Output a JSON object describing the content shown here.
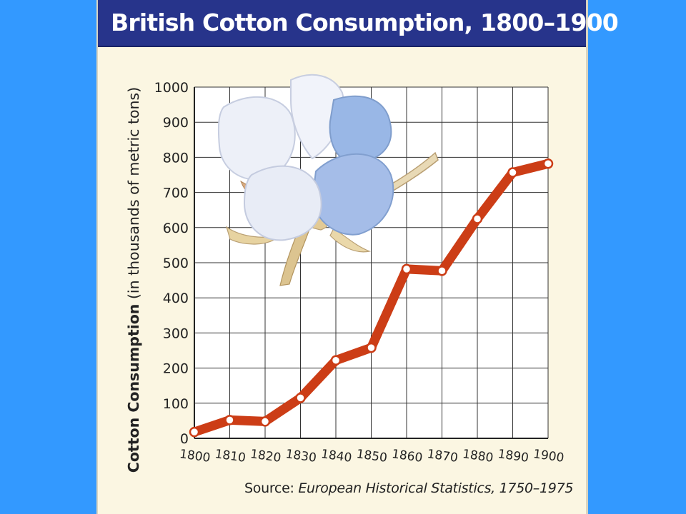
{
  "chart_data": {
    "type": "line",
    "title": "British Cotton Consumption, 1800–1900",
    "ylabel_bold": "Cotton Consumption",
    "ylabel_rest": " (in thousands of metric tons)",
    "xlabel": "",
    "x": [
      1800,
      1810,
      1820,
      1830,
      1840,
      1850,
      1860,
      1870,
      1880,
      1890,
      1900
    ],
    "x_tick_labels": [
      "1800",
      "1810",
      "1820",
      "1830",
      "1840",
      "1850",
      "1860",
      "1870",
      "1880",
      "1890",
      "1900"
    ],
    "series": [
      {
        "values": [
          18,
          52,
          48,
          115,
          222,
          258,
          482,
          477,
          625,
          757,
          782
        ]
      }
    ],
    "ylim": [
      0,
      1000
    ],
    "y_ticks": [
      0,
      100,
      200,
      300,
      400,
      500,
      600,
      700,
      800,
      900,
      1000
    ],
    "y_tick_labels": [
      "0",
      "100",
      "200",
      "300",
      "400",
      "500",
      "600",
      "700",
      "800",
      "900",
      "1000"
    ],
    "grid": true,
    "legend": "none",
    "colors": {
      "line": "#cc3d16",
      "title_bg": "#27348b",
      "panel_bg": "#fbf6e2",
      "plot_bg": "#ffffff",
      "page_bg": "#3399ff"
    },
    "decoration": "cotton-boll-illustration"
  },
  "source": {
    "prefix": "Source: ",
    "title": "European Historical Statistics, 1750–1975"
  }
}
